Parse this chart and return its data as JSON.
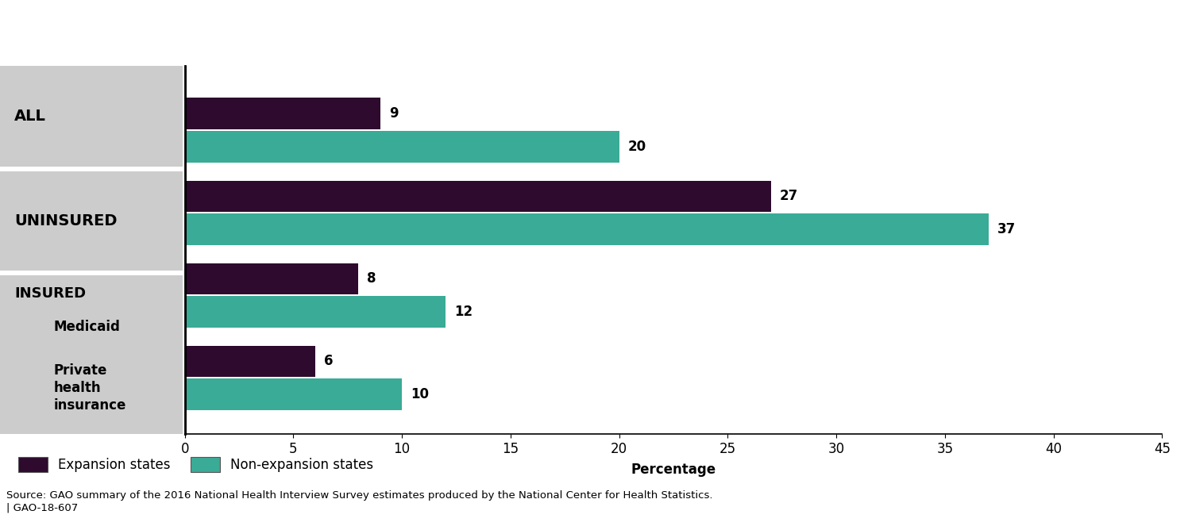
{
  "expansion_values": [
    9,
    27,
    8,
    6
  ],
  "nonexpansion_values": [
    20,
    37,
    12,
    10
  ],
  "expansion_color": "#2d0a2e",
  "nonexpansion_color": "#3aab96",
  "bar_height": 0.38,
  "xlim": [
    0,
    45
  ],
  "xticks": [
    0,
    5,
    10,
    15,
    20,
    25,
    30,
    35,
    40,
    45
  ],
  "xlabel": "Percentage",
  "legend_label_expansion": "Expansion states",
  "legend_label_nonexpansion": "Non-expansion states",
  "source_text": "Source: GAO summary of the 2016 National Health Interview Survey estimates produced by the National Center for Health Statistics.\n| GAO-18-607",
  "annotation_fontsize": 12,
  "tick_fontsize": 12,
  "xlabel_fontsize": 12,
  "label_bg_color": "#cccccc",
  "fig_bg_color": "#ffffff",
  "gap_color": "#ffffff"
}
